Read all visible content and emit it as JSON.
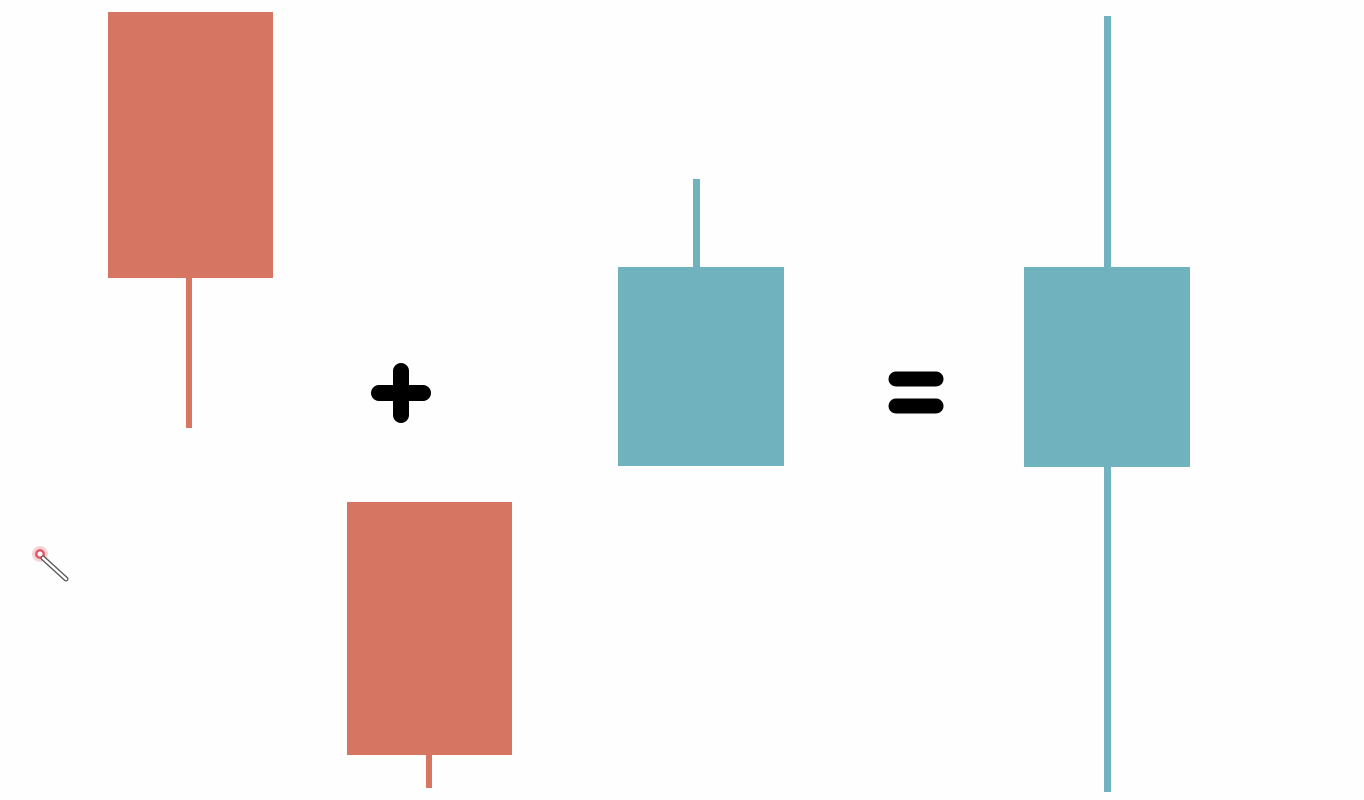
{
  "diagram": {
    "colors": {
      "bearish": "#d77563",
      "bullish": "#70b2bd",
      "operator": "#000000",
      "background": "#fefefe"
    },
    "candles": [
      {
        "id": "candle-1",
        "role": "first-operand",
        "direction": "bearish",
        "color": "#d77563"
      },
      {
        "id": "candle-2",
        "role": "second-operand",
        "direction": "bearish",
        "color": "#d77563"
      },
      {
        "id": "candle-3",
        "role": "third-operand",
        "direction": "bullish",
        "color": "#70b2bd"
      },
      {
        "id": "candle-result",
        "role": "result",
        "direction": "bullish",
        "color": "#70b2bd"
      }
    ],
    "operators": [
      {
        "symbol": "plus-icon"
      },
      {
        "symbol": "equals-icon"
      }
    ],
    "cursor": {
      "icon": "pointer-cursor-icon"
    }
  }
}
